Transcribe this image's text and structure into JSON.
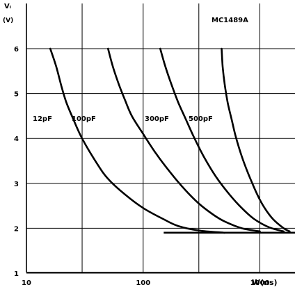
{
  "chart_data": {
    "type": "line",
    "title": "",
    "annotation": "MC1489A",
    "ylabel": "Vₗ",
    "ylabel_unit": "(V)",
    "xlabel": "W(ns)",
    "x_scale": "log",
    "xlim": [
      10,
      2000
    ],
    "ylim": [
      1,
      6
    ],
    "x_ticks": [
      10,
      100,
      1000
    ],
    "x_tick_labels": [
      "10",
      "100",
      "1000"
    ],
    "y_ticks": [
      1,
      2,
      3,
      4,
      5,
      6
    ],
    "y_tick_labels": [
      "1",
      "2",
      "3",
      "4",
      "5",
      "6"
    ],
    "grid": true,
    "colors": {
      "line": "#000000",
      "grid": "#000000",
      "background": "#ffffff"
    },
    "series": [
      {
        "name": "12pF",
        "points": [
          [
            16,
            6.0
          ],
          [
            18,
            5.6
          ],
          [
            20,
            5.15
          ],
          [
            22,
            4.8
          ],
          [
            25,
            4.45
          ],
          [
            30,
            4.0
          ],
          [
            40,
            3.45
          ],
          [
            50,
            3.1
          ],
          [
            70,
            2.75
          ],
          [
            100,
            2.45
          ],
          [
            150,
            2.2
          ],
          [
            200,
            2.05
          ],
          [
            300,
            1.95
          ],
          [
            500,
            1.9
          ]
        ]
      },
      {
        "name": "100pF",
        "points": [
          [
            50,
            6.0
          ],
          [
            55,
            5.6
          ],
          [
            62,
            5.2
          ],
          [
            70,
            4.85
          ],
          [
            80,
            4.5
          ],
          [
            100,
            4.1
          ],
          [
            130,
            3.65
          ],
          [
            170,
            3.25
          ],
          [
            230,
            2.85
          ],
          [
            300,
            2.55
          ],
          [
            400,
            2.3
          ],
          [
            500,
            2.15
          ],
          [
            700,
            2.0
          ],
          [
            1000,
            1.93
          ]
        ]
      },
      {
        "name": "300pF",
        "points": [
          [
            140,
            6.0
          ],
          [
            155,
            5.6
          ],
          [
            175,
            5.2
          ],
          [
            200,
            4.8
          ],
          [
            230,
            4.45
          ],
          [
            270,
            4.05
          ],
          [
            330,
            3.6
          ],
          [
            420,
            3.15
          ],
          [
            550,
            2.75
          ],
          [
            700,
            2.45
          ],
          [
            900,
            2.2
          ],
          [
            1200,
            2.02
          ],
          [
            1600,
            1.93
          ]
        ]
      },
      {
        "name": "500pF",
        "points": [
          [
            470,
            6.0
          ],
          [
            480,
            5.6
          ],
          [
            500,
            5.2
          ],
          [
            530,
            4.8
          ],
          [
            570,
            4.45
          ],
          [
            620,
            4.05
          ],
          [
            700,
            3.6
          ],
          [
            800,
            3.2
          ],
          [
            950,
            2.75
          ],
          [
            1100,
            2.45
          ],
          [
            1300,
            2.2
          ],
          [
            1600,
            2.0
          ],
          [
            1800,
            1.93
          ]
        ]
      }
    ],
    "baseline": {
      "y": 1.9,
      "x_from": 150,
      "x_to": 2000
    }
  }
}
